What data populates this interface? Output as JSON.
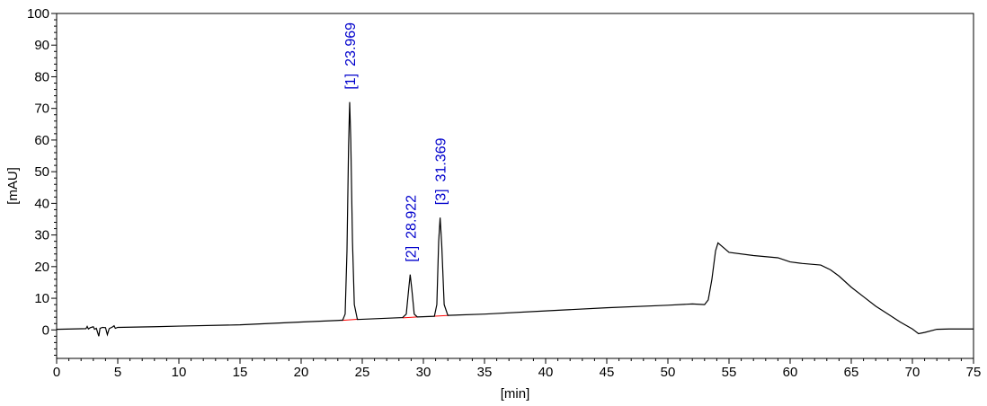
{
  "chart_data": {
    "type": "line",
    "title": "",
    "xlabel": "[min]",
    "ylabel": "[mAU]",
    "xlim": [
      0,
      75
    ],
    "ylim": [
      -9,
      100
    ],
    "x_ticks": [
      0,
      5,
      10,
      15,
      20,
      25,
      30,
      35,
      40,
      45,
      50,
      55,
      60,
      65,
      70,
      75
    ],
    "y_ticks": [
      0,
      10,
      20,
      30,
      40,
      50,
      60,
      70,
      80,
      90,
      100
    ],
    "grid": false,
    "line_color": "#000000",
    "baseline_color": "#ff0000",
    "label_color": "#0000cc",
    "peaks": [
      {
        "index": "[1]",
        "time": "23.969",
        "x": 23.969,
        "height": 72.0
      },
      {
        "index": "[2]",
        "time": "28.922",
        "x": 28.922,
        "height": 17.5
      },
      {
        "index": "[3]",
        "time": "31.369",
        "x": 31.369,
        "height": 35.5
      }
    ],
    "series": [
      {
        "points": [
          [
            0,
            0.2
          ],
          [
            2.4,
            0.4
          ],
          [
            2.5,
            1.1
          ],
          [
            2.6,
            0.3
          ],
          [
            2.75,
            0.7
          ],
          [
            3.0,
            1.0
          ],
          [
            3.1,
            0.2
          ],
          [
            3.25,
            0.5
          ],
          [
            3.45,
            -2.0
          ],
          [
            3.55,
            0.5
          ],
          [
            3.75,
            0.8
          ],
          [
            4.0,
            0.7
          ],
          [
            4.15,
            -1.5
          ],
          [
            4.3,
            0.4
          ],
          [
            4.6,
            1.0
          ],
          [
            4.7,
            1.3
          ],
          [
            4.8,
            0.5
          ],
          [
            5,
            0.8
          ],
          [
            8,
            1.0
          ],
          [
            10,
            1.2
          ],
          [
            15,
            1.6
          ],
          [
            20,
            2.5
          ],
          [
            23.0,
            3.0
          ],
          [
            23.4,
            3.1
          ],
          [
            23.6,
            5
          ],
          [
            23.75,
            25
          ],
          [
            23.88,
            58
          ],
          [
            23.97,
            72
          ],
          [
            24.06,
            60
          ],
          [
            24.2,
            28
          ],
          [
            24.35,
            8
          ],
          [
            24.6,
            3.3
          ],
          [
            28.3,
            3.9
          ],
          [
            28.6,
            5
          ],
          [
            28.8,
            13
          ],
          [
            28.92,
            17.5
          ],
          [
            29.05,
            13
          ],
          [
            29.25,
            5
          ],
          [
            29.5,
            4.1
          ],
          [
            30.9,
            4.3
          ],
          [
            31.1,
            8
          ],
          [
            31.25,
            28
          ],
          [
            31.37,
            35.5
          ],
          [
            31.5,
            27
          ],
          [
            31.7,
            8
          ],
          [
            32.0,
            4.6
          ],
          [
            35,
            5.0
          ],
          [
            40,
            6.0
          ],
          [
            45,
            7.0
          ],
          [
            50,
            7.8
          ],
          [
            52.0,
            8.2
          ],
          [
            53.0,
            8.0
          ],
          [
            53.3,
            9.5
          ],
          [
            53.6,
            16
          ],
          [
            53.9,
            25
          ],
          [
            54.1,
            27.5
          ],
          [
            54.4,
            26.5
          ],
          [
            55,
            24.5
          ],
          [
            57,
            23.5
          ],
          [
            59,
            22.8
          ],
          [
            60,
            21.5
          ],
          [
            61,
            21.0
          ],
          [
            62.5,
            20.5
          ],
          [
            63.3,
            19.0
          ],
          [
            64,
            17
          ],
          [
            65,
            13.5
          ],
          [
            66,
            10.5
          ],
          [
            67,
            7.5
          ],
          [
            68,
            5.0
          ],
          [
            69,
            2.5
          ],
          [
            70,
            0.3
          ],
          [
            70.5,
            -1.2
          ],
          [
            71,
            -0.8
          ],
          [
            72,
            0.2
          ],
          [
            73,
            0.3
          ],
          [
            75,
            0.3
          ]
        ]
      }
    ],
    "baselines": [
      [
        [
          23.3,
          3.0
        ],
        [
          24.7,
          3.4
        ]
      ],
      [
        [
          28.3,
          3.8
        ],
        [
          29.5,
          4.1
        ]
      ],
      [
        [
          30.8,
          4.3
        ],
        [
          32.1,
          4.6
        ]
      ]
    ]
  }
}
